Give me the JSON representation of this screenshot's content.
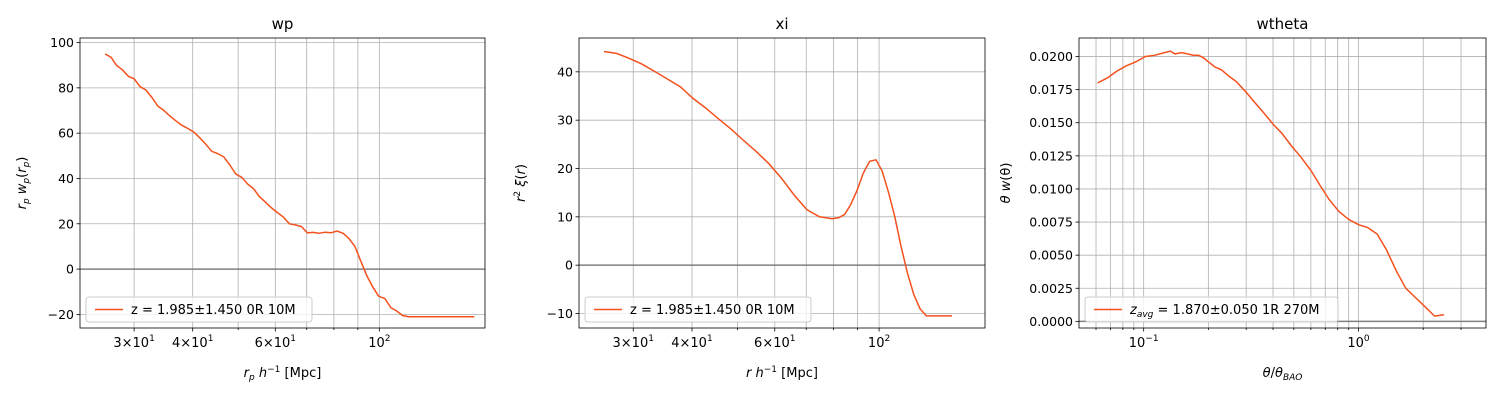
{
  "chart_data": [
    {
      "type": "line",
      "title": "wp",
      "xlabel": "r_p h^-1 [Mpc]",
      "ylabel": "r_p w_p(r_p)",
      "xscale": "log",
      "xlim": [
        23,
        168
      ],
      "ylim": [
        -26,
        102
      ],
      "x_major_ticks": [
        {
          "value": 30,
          "base": "3×10",
          "exp": "1"
        },
        {
          "value": 40,
          "base": "4×10",
          "exp": "1"
        },
        {
          "value": 60,
          "base": "6×10",
          "exp": "1"
        },
        {
          "value": 100,
          "base": "10",
          "exp": "2"
        }
      ],
      "x_minor_grid": [
        50,
        70,
        80,
        90
      ],
      "y_ticks": [
        -20,
        0,
        20,
        40,
        60,
        80,
        100
      ],
      "y_tick_labels": [
        "−20",
        "0",
        "20",
        "40",
        "60",
        "80",
        "100"
      ],
      "zero_line": true,
      "grid": true,
      "legend_loc": "lower left",
      "series": [
        {
          "name": "z = 1.985±1.450 0R 10M",
          "color": "#f4511e",
          "x": [
            26.0,
            26.8,
            27.5,
            28.3,
            29.2,
            30.0,
            30.9,
            31.8,
            32.8,
            33.7,
            34.7,
            35.8,
            36.8,
            37.9,
            39.1,
            40.2,
            41.4,
            42.7,
            43.9,
            45.2,
            46.6,
            48.0,
            49.4,
            50.9,
            52.4,
            53.9,
            55.5,
            57.2,
            58.9,
            60.6,
            62.4,
            64.3,
            66.2,
            68.2,
            70.2,
            72.3,
            74.4,
            76.6,
            78.9,
            81.2,
            83.7,
            86.1,
            88.7,
            91.3,
            94.1,
            96.9,
            99.7,
            102.7,
            105.8,
            108.9,
            112.1,
            115.5,
            118.9,
            122.4,
            126.1,
            129.8,
            133.7,
            137.6,
            141.7,
            145.9,
            150.3,
            154.8,
            159.4
          ],
          "y": [
            95,
            93.5,
            90,
            88,
            85,
            84,
            80.5,
            79,
            75.5,
            72,
            70,
            67.5,
            65.5,
            63.5,
            62,
            60.5,
            58,
            55,
            52,
            51,
            49.5,
            46,
            42,
            40.5,
            37.5,
            35.5,
            32,
            29.5,
            27,
            25,
            23,
            20,
            19.5,
            18.8,
            16,
            16.2,
            15.8,
            16.3,
            16,
            16.8,
            15.8,
            13.5,
            10,
            3.5,
            -3,
            -8,
            -12,
            -13,
            -17,
            -18.5,
            -20.5,
            -21,
            -21,
            -21,
            -21,
            -21,
            -21,
            -21,
            -21,
            -21,
            -21,
            -21,
            -21
          ]
        }
      ]
    },
    {
      "type": "line",
      "title": "xi",
      "xlabel": "r h^-1 [Mpc]",
      "ylabel": "r^2 ξ(r)",
      "xscale": "log",
      "xlim": [
        23,
        168
      ],
      "ylim": [
        -13,
        47
      ],
      "x_major_ticks": [
        {
          "value": 30,
          "base": "3×10",
          "exp": "1"
        },
        {
          "value": 40,
          "base": "4×10",
          "exp": "1"
        },
        {
          "value": 60,
          "base": "6×10",
          "exp": "1"
        },
        {
          "value": 100,
          "base": "10",
          "exp": "2"
        }
      ],
      "x_minor_grid": [
        50,
        70,
        80,
        90
      ],
      "y_ticks": [
        -10,
        0,
        10,
        20,
        30,
        40
      ],
      "y_tick_labels": [
        "−10",
        "0",
        "10",
        "20",
        "30",
        "40"
      ],
      "zero_line": true,
      "grid": true,
      "legend_loc": "lower left",
      "series": [
        {
          "name": "z = 1.985±1.450 0R 10M",
          "color": "#f4511e",
          "x": [
            26.0,
            27.7,
            29.4,
            31.3,
            33.3,
            35.5,
            37.8,
            40.2,
            42.8,
            45.5,
            48.4,
            51.5,
            54.8,
            58.3,
            62.0,
            66.0,
            70.2,
            74.7,
            79.4,
            82.0,
            84.5,
            87.0,
            89.8,
            92.5,
            95.5,
            98.5,
            101.5,
            104.8,
            108.0,
            111.3,
            114.8,
            118.5,
            122.2,
            126.0,
            130.0,
            134.0,
            138.5,
            143.0
          ],
          "y": [
            44.2,
            43.8,
            42.8,
            41.6,
            40.1,
            38.5,
            36.9,
            34.5,
            32.5,
            30.3,
            28.2,
            25.8,
            23.5,
            21.0,
            18.0,
            14.5,
            11.5,
            10.0,
            9.6,
            9.8,
            10.5,
            12.5,
            15.5,
            19,
            21.5,
            21.8,
            19.5,
            15,
            10,
            4,
            -1.5,
            -6,
            -9,
            -10.5,
            -10.5,
            -10.5,
            -10.5,
            -10.5
          ]
        }
      ]
    },
    {
      "type": "line",
      "title": "wtheta",
      "xlabel": "θ/θ_BAO",
      "ylabel": "θ w(θ)",
      "xscale": "log",
      "xlim": [
        0.05,
        3.92
      ],
      "ylim": [
        -0.0005,
        0.0214
      ],
      "x_major_ticks": [
        {
          "value": 0.1,
          "base": "10",
          "exp": "−1"
        },
        {
          "value": 1,
          "base": "10",
          "exp": "0"
        }
      ],
      "x_minor_grid": [
        0.06,
        0.07,
        0.08,
        0.09,
        0.2,
        0.3,
        0.4,
        0.5,
        0.6,
        0.7,
        0.8,
        0.9,
        2,
        3
      ],
      "y_ticks": [
        0.0,
        0.0025,
        0.005,
        0.0075,
        0.01,
        0.0125,
        0.015,
        0.0175,
        0.02
      ],
      "y_tick_labels": [
        "0.0000",
        "0.0025",
        "0.0050",
        "0.0075",
        "0.0100",
        "0.0125",
        "0.0150",
        "0.0175",
        "0.0200"
      ],
      "zero_line": true,
      "grid": true,
      "legend_loc": "lower left",
      "series": [
        {
          "name_prefix": "z",
          "name_sub": "avg",
          "name_suffix": " = 1.870±0.050 1R 270M",
          "color": "#f4511e",
          "x": [
            0.061,
            0.068,
            0.075,
            0.083,
            0.092,
            0.102,
            0.113,
            0.125,
            0.133,
            0.14,
            0.15,
            0.16,
            0.17,
            0.18,
            0.19,
            0.2,
            0.215,
            0.23,
            0.25,
            0.27,
            0.3,
            0.33,
            0.36,
            0.4,
            0.44,
            0.49,
            0.54,
            0.6,
            0.66,
            0.73,
            0.81,
            0.9,
            1.0,
            1.1,
            1.22,
            1.35,
            1.5,
            1.66,
            1.84,
            2.04,
            2.26,
            2.5
          ],
          "y": [
            0.018,
            0.0184,
            0.0189,
            0.0193,
            0.0196,
            0.02,
            0.0201,
            0.0203,
            0.0204,
            0.0202,
            0.0203,
            0.0202,
            0.0201,
            0.0201,
            0.0199,
            0.0196,
            0.0192,
            0.019,
            0.0185,
            0.0181,
            0.0173,
            0.0165,
            0.0158,
            0.0149,
            0.0142,
            0.0132,
            0.0124,
            0.0114,
            0.0103,
            0.0092,
            0.0083,
            0.0077,
            0.0073,
            0.0071,
            0.0066,
            0.0054,
            0.0038,
            0.0025,
            0.0018,
            0.0011,
            0.0004,
            0.0005
          ]
        }
      ]
    }
  ]
}
